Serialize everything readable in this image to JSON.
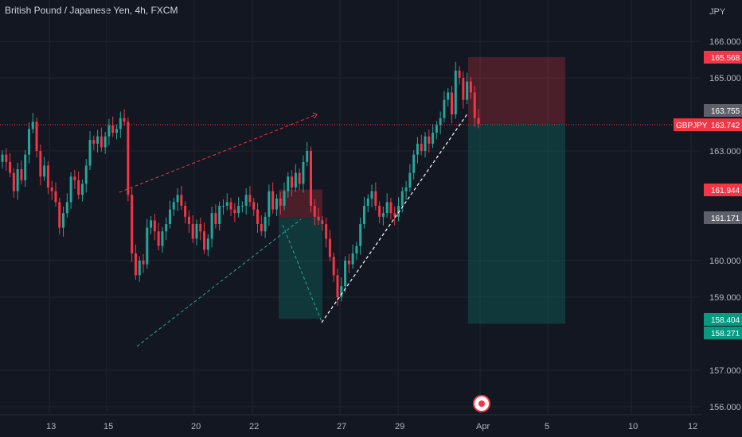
{
  "header": {
    "title": "British Pound / Japanese Yen, 4h, FXCM"
  },
  "colors": {
    "up": "#26a69a",
    "down": "#f23645",
    "bg": "#131722",
    "grid": "#1f2430",
    "text": "#b2b5be"
  },
  "price_axis": {
    "currency": "JPY",
    "ticks": [
      "166.000",
      "165.000",
      "163.000",
      "160.000",
      "159.000",
      "157.000",
      "156.000"
    ]
  },
  "time_axis": {
    "labels": [
      "13",
      "15",
      "20",
      "22",
      "27",
      "29",
      "Apr",
      "5",
      "10",
      "12"
    ]
  },
  "price_tags": {
    "stop": "165.568",
    "current_symbol": "GBPJPY",
    "current_price": "163.742",
    "entry": "163.755",
    "level_1": "161.944",
    "level_2": "161.171",
    "target_1": "158.404",
    "target_2": "158.271"
  },
  "chart_data": {
    "type": "candlestick",
    "title": "British Pound / Japanese Yen, 4h, FXCM",
    "ylabel": "JPY",
    "ylim": [
      155.9,
      166.7
    ],
    "yticks": [
      166,
      165,
      163,
      160,
      159,
      157,
      156
    ],
    "xticks": [
      "13",
      "15",
      "20",
      "22",
      "27",
      "29",
      "Apr",
      "5",
      "10",
      "12"
    ],
    "candles_close": [
      162.9,
      162.7,
      162.4,
      161.9,
      162.5,
      162.2,
      162.9,
      163.6,
      163.8,
      163.0,
      162.3,
      162.6,
      162.0,
      161.9,
      161.6,
      160.9,
      161.3,
      161.6,
      162.3,
      162.2,
      161.8,
      162.1,
      162.6,
      163.3,
      163.2,
      163.4,
      163.1,
      163.4,
      163.7,
      163.5,
      163.6,
      163.9,
      163.8,
      161.8,
      160.2,
      159.6,
      160.0,
      159.9,
      160.9,
      161.1,
      160.8,
      160.4,
      160.8,
      161.0,
      161.4,
      161.6,
      161.8,
      161.5,
      161.2,
      161.0,
      160.6,
      161.0,
      160.8,
      160.3,
      160.6,
      161.3,
      161.0,
      161.5,
      161.5,
      161.6,
      161.4,
      161.3,
      161.5,
      161.5,
      161.8,
      161.6,
      161.4,
      161.0,
      160.8,
      161.2,
      161.9,
      161.4,
      161.7,
      161.5,
      161.9,
      162.3,
      162.0,
      162.4,
      162.1,
      162.7,
      163.0,
      161.5,
      161.2,
      161.1,
      161.0,
      160.6,
      160.1,
      159.6,
      159.0,
      159.3,
      160.0,
      159.9,
      160.2,
      160.4,
      161.0,
      161.5,
      161.7,
      161.9,
      161.5,
      161.2,
      161.3,
      161.6,
      161.3,
      161.2,
      161.5,
      161.9,
      162.0,
      162.4,
      162.9,
      163.2,
      163.0,
      163.4,
      163.2,
      163.5,
      163.7,
      163.9,
      164.4,
      164.6,
      164.0,
      165.2,
      165.0,
      164.4,
      164.9,
      164.6,
      163.9,
      163.742
    ],
    "drawings": {
      "short_position_right": {
        "entry": 163.755,
        "stop": 165.568,
        "target": 158.271
      },
      "short_position_left": {
        "entry": 161.171,
        "stop": 161.944,
        "target": 158.404
      },
      "current_price_line": 163.742
    }
  }
}
